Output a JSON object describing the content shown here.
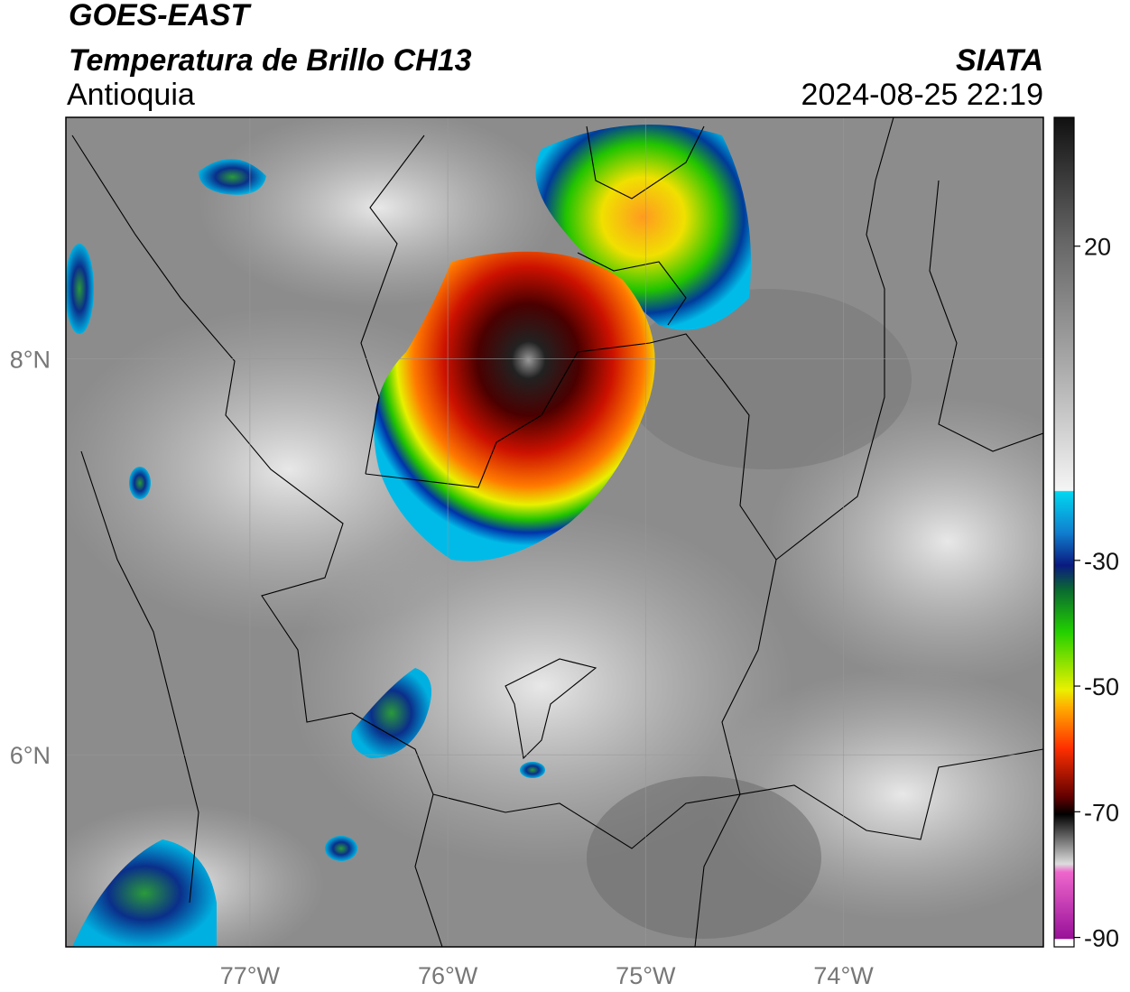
{
  "header": {
    "title_line1": "GOES-EAST",
    "title_line2": "Temperatura de Brillo CH13",
    "region": "Antioquia",
    "source": "SIATA",
    "timestamp": "2024-08-25 22:19"
  },
  "map": {
    "lon_range": [
      -77.93,
      -72.99
    ],
    "lat_range": [
      5.03,
      9.22
    ],
    "lon_ticks": [
      {
        "value": -77,
        "label": "77°W"
      },
      {
        "value": -76,
        "label": "76°W"
      },
      {
        "value": -75,
        "label": "75°W"
      },
      {
        "value": -74,
        "label": "74°W"
      }
    ],
    "lat_ticks": [
      {
        "value": 8,
        "label": "8°N"
      },
      {
        "value": 6,
        "label": "6°N"
      }
    ]
  },
  "colorbar": {
    "range": [
      -91.5,
      40.5
    ],
    "ticks": [
      20,
      -30,
      -50,
      -70,
      -90
    ]
  }
}
